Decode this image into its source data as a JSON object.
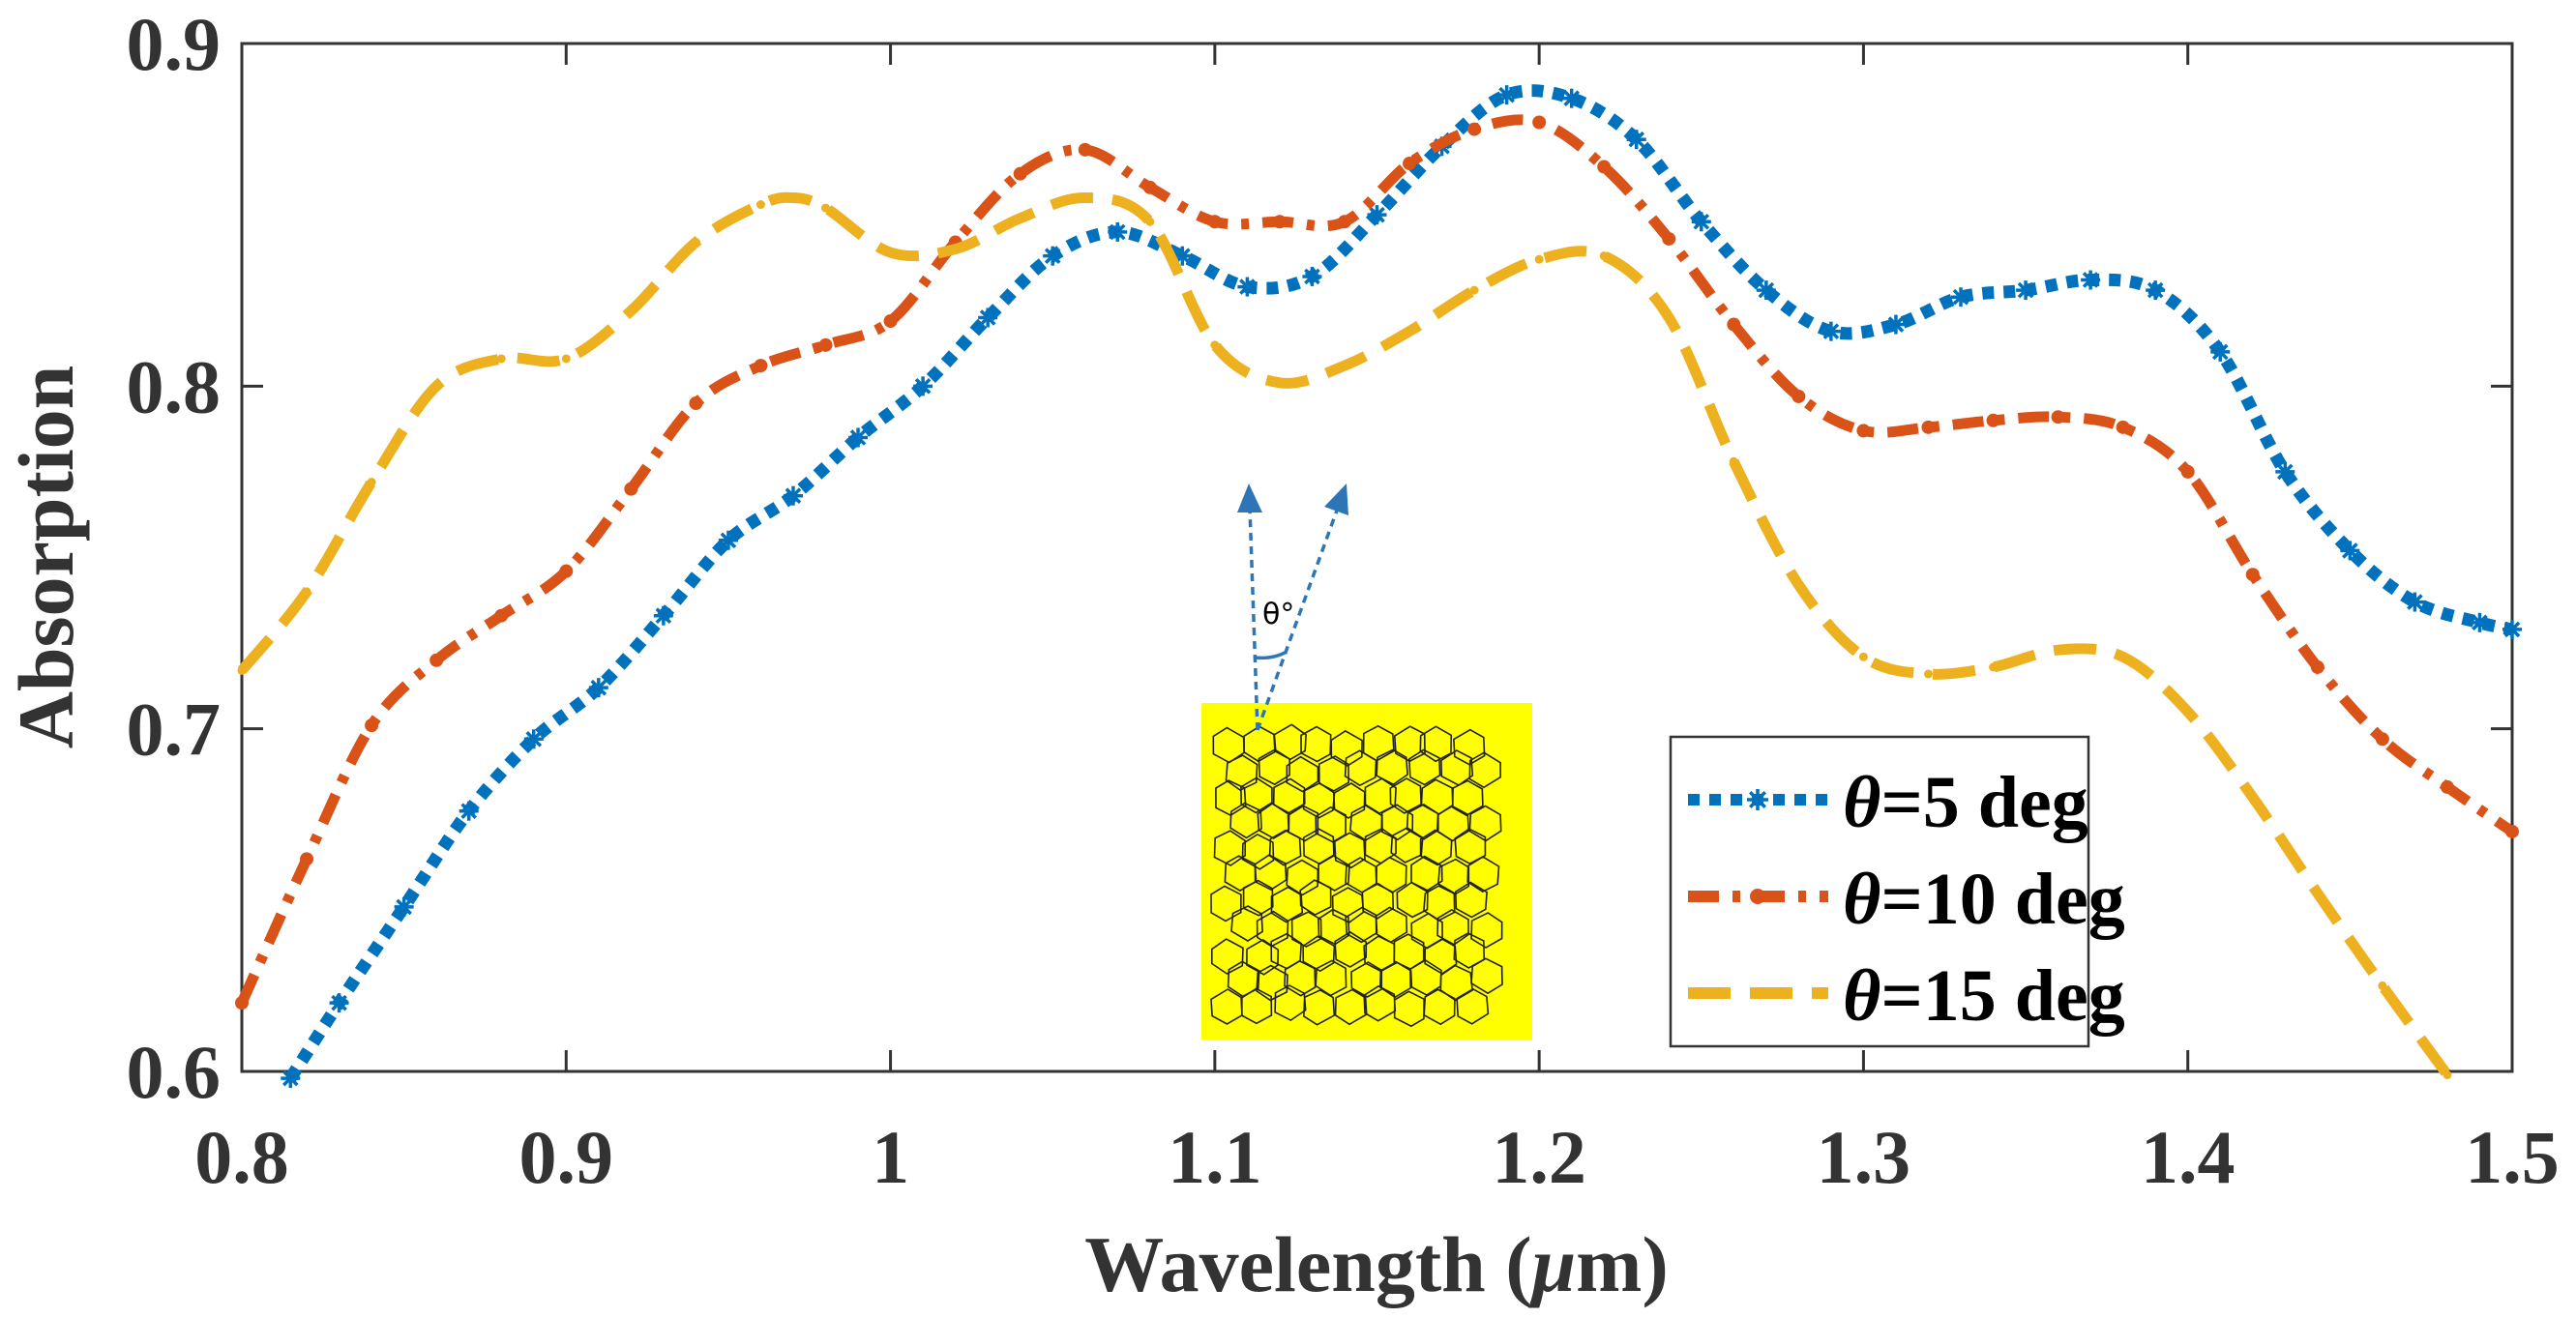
{
  "chart_data": {
    "type": "line",
    "title": "",
    "xlabel": "Wavelength (",
    "xlabel_mu": "μ",
    "xlabel_unit": "m)",
    "ylabel": "Absorption",
    "xlim": [
      0.8,
      1.5
    ],
    "ylim": [
      0.6,
      0.9
    ],
    "xticks": [
      "0.8",
      "0.9",
      "1",
      "1.1",
      "1.2",
      "1.3",
      "1.4",
      "1.5"
    ],
    "yticks": [
      "0.6",
      "0.7",
      "0.8",
      "0.9"
    ],
    "xtick_values": [
      0.8,
      0.9,
      1.0,
      1.1,
      1.2,
      1.3,
      1.4,
      1.5
    ],
    "ytick_values": [
      0.6,
      0.7,
      0.8,
      0.9
    ],
    "legend_position": "lower-right",
    "series": [
      {
        "name": "θ=5 deg",
        "theta": "θ",
        "label_rest": "=5 deg",
        "color": "#0072BD",
        "style": "dotted-asterisk",
        "x": [
          0.815,
          0.83,
          0.85,
          0.87,
          0.89,
          0.91,
          0.93,
          0.95,
          0.97,
          0.99,
          1.01,
          1.03,
          1.05,
          1.07,
          1.09,
          1.11,
          1.13,
          1.15,
          1.17,
          1.19,
          1.21,
          1.23,
          1.25,
          1.27,
          1.29,
          1.31,
          1.33,
          1.35,
          1.37,
          1.39,
          1.41,
          1.43,
          1.45,
          1.47,
          1.49,
          1.5
        ],
        "y": [
          0.598,
          0.62,
          0.648,
          0.676,
          0.697,
          0.712,
          0.733,
          0.755,
          0.768,
          0.785,
          0.8,
          0.82,
          0.838,
          0.845,
          0.838,
          0.829,
          0.832,
          0.85,
          0.87,
          0.885,
          0.884,
          0.872,
          0.848,
          0.828,
          0.816,
          0.818,
          0.826,
          0.828,
          0.831,
          0.828,
          0.81,
          0.775,
          0.752,
          0.737,
          0.731,
          0.729
        ]
      },
      {
        "name": "θ=10 deg",
        "theta": "θ",
        "label_rest": "=10 deg",
        "color": "#D95319",
        "style": "dash-dot",
        "x": [
          0.8,
          0.82,
          0.84,
          0.86,
          0.88,
          0.9,
          0.92,
          0.94,
          0.96,
          0.98,
          1.0,
          1.02,
          1.04,
          1.06,
          1.08,
          1.1,
          1.12,
          1.14,
          1.16,
          1.18,
          1.2,
          1.22,
          1.24,
          1.26,
          1.28,
          1.3,
          1.32,
          1.34,
          1.36,
          1.38,
          1.4,
          1.42,
          1.44,
          1.46,
          1.48,
          1.5
        ],
        "y": [
          0.62,
          0.662,
          0.701,
          0.72,
          0.733,
          0.746,
          0.77,
          0.795,
          0.806,
          0.812,
          0.819,
          0.842,
          0.862,
          0.869,
          0.858,
          0.848,
          0.848,
          0.848,
          0.865,
          0.875,
          0.877,
          0.864,
          0.843,
          0.818,
          0.797,
          0.787,
          0.788,
          0.79,
          0.791,
          0.788,
          0.775,
          0.745,
          0.718,
          0.697,
          0.683,
          0.67
        ]
      },
      {
        "name": "θ=15 deg",
        "theta": "θ",
        "label_rest": "=15 deg",
        "color": "#EDB120",
        "style": "dashed",
        "x": [
          0.8,
          0.82,
          0.84,
          0.86,
          0.88,
          0.9,
          0.92,
          0.94,
          0.96,
          0.97,
          0.98,
          1.0,
          1.02,
          1.04,
          1.06,
          1.08,
          1.1,
          1.12,
          1.14,
          1.16,
          1.18,
          1.2,
          1.22,
          1.24,
          1.26,
          1.28,
          1.3,
          1.32,
          1.34,
          1.36,
          1.38,
          1.4,
          1.42,
          1.44,
          1.46,
          1.48
        ],
        "y": [
          0.717,
          0.74,
          0.772,
          0.8,
          0.808,
          0.808,
          0.822,
          0.842,
          0.853,
          0.855,
          0.852,
          0.839,
          0.84,
          0.849,
          0.855,
          0.848,
          0.812,
          0.801,
          0.806,
          0.816,
          0.828,
          0.837,
          0.838,
          0.82,
          0.778,
          0.742,
          0.721,
          0.716,
          0.718,
          0.723,
          0.721,
          0.705,
          0.68,
          0.652,
          0.625,
          0.599
        ]
      }
    ],
    "inset": {
      "angle_label": "θ°",
      "fill_color": "#FFFF00"
    }
  }
}
